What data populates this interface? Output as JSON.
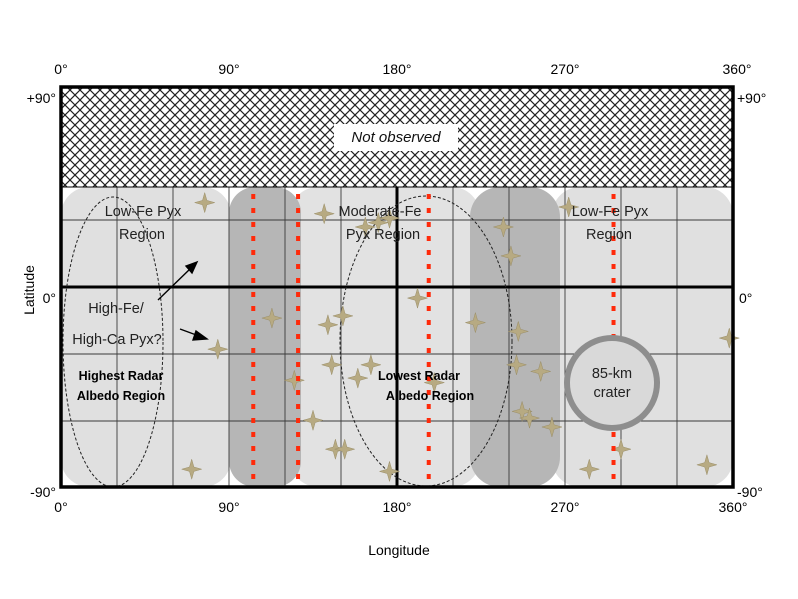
{
  "axes": {
    "x_ticks_top": [
      "0°",
      "90°",
      "180°",
      "270°",
      "360°"
    ],
    "x_ticks_bottom": [
      "0°",
      "90°",
      "180°",
      "270°",
      "360°"
    ],
    "y_ticks_left": [
      "+90°",
      "0°",
      "-90°"
    ],
    "y_ticks_right": [
      "+90°",
      "0°",
      "-90°"
    ],
    "x_title": "Longitude",
    "y_title": "Latitude"
  },
  "labels": {
    "not_observed": "Not observed",
    "low_fe_left": [
      "Low-Fe Pyx",
      "Region"
    ],
    "moderate_fe": [
      "Moderate-Fe",
      "Pyx Region"
    ],
    "low_fe_right": [
      "Low-Fe Pyx",
      "Region"
    ],
    "high_fe": [
      "High-Fe/",
      "High-Ca Pyx?"
    ],
    "highest_radar": [
      "Highest Radar",
      "Albedo Region"
    ],
    "lowest_radar": [
      "Lowest Radar",
      "Albedo Region"
    ],
    "crater": [
      "85-km",
      "crater"
    ]
  },
  "colors": {
    "dotted_line": "#ff2a0a",
    "star": "#b7aa82",
    "shade_light": "#e2e2e2",
    "shade_dark": "#b4b4b4",
    "crater_ring": "#909090"
  },
  "map_features": {
    "dotted_lines_longitude_deg": [
      103,
      127,
      197,
      296
    ],
    "star_positions_deg": [
      [
        77,
        38
      ],
      [
        113,
        -14
      ],
      [
        125,
        -42
      ],
      [
        135,
        -60
      ],
      [
        143,
        -17
      ],
      [
        166,
        -35
      ],
      [
        141,
        33
      ],
      [
        145,
        -35
      ],
      [
        147,
        -73
      ],
      [
        151,
        -13
      ],
      [
        152,
        -73
      ],
      [
        159,
        -41
      ],
      [
        163,
        27
      ],
      [
        170,
        29
      ],
      [
        176,
        31
      ],
      [
        176,
        -83
      ],
      [
        191,
        -5
      ],
      [
        200,
        -43
      ],
      [
        222,
        -16
      ],
      [
        237,
        27
      ],
      [
        241,
        14
      ],
      [
        244,
        -35
      ],
      [
        245,
        -20
      ],
      [
        247,
        -56
      ],
      [
        251,
        -59
      ],
      [
        257,
        -38
      ],
      [
        263,
        -63
      ],
      [
        272,
        36
      ],
      [
        283,
        -82
      ],
      [
        300,
        -73
      ],
      [
        346,
        -80
      ],
      [
        358,
        -23
      ],
      [
        84,
        -28
      ],
      [
        70,
        -82
      ]
    ]
  }
}
